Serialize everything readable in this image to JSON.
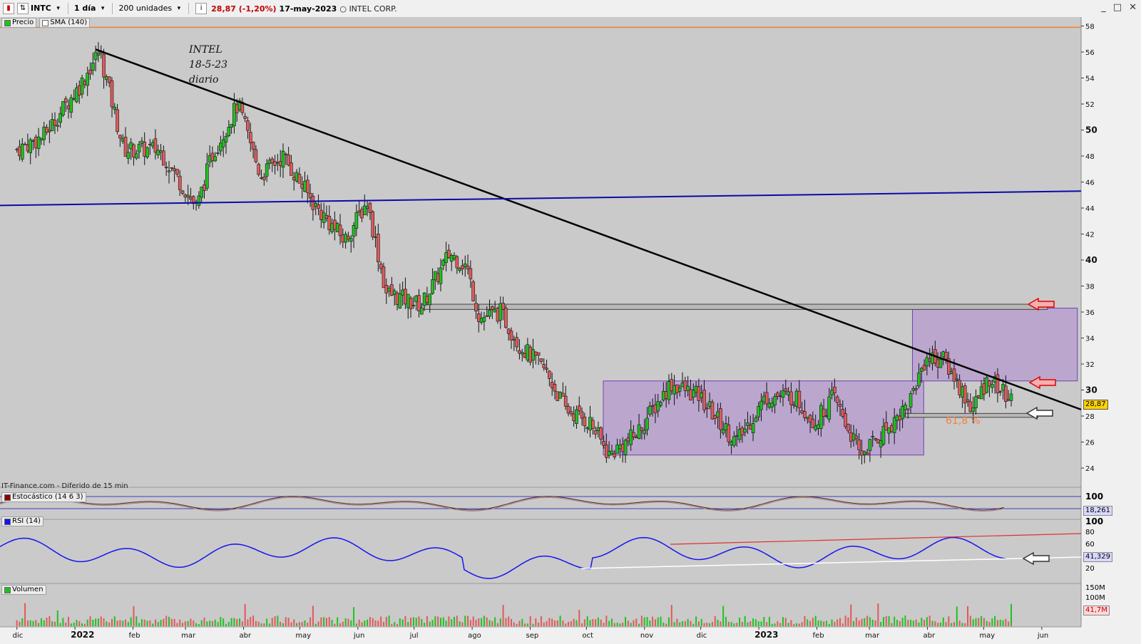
{
  "toolbar": {
    "symbol": "INTC",
    "interval": "1 día",
    "units": "200 unidades",
    "price_change": "28,87 (-1,20%)",
    "date": "17-may-2023",
    "company": "INTEL CORP.",
    "window_controls": [
      "_",
      "□",
      "✕"
    ]
  },
  "legend": {
    "price_label": "Precio",
    "sma_label": "SMA (140)",
    "stoch_label": "Estocástico (14 6 3)",
    "rsi_label": "RSI (14)",
    "volume_label": "Volumen"
  },
  "provider": "IT-Finance.com - Diferido de 15 min",
  "annotation": [
    "INTEL",
    "18-5-23",
    "diario"
  ],
  "fib_label": "61,8 %",
  "last_price_tag": "28,87",
  "stoch_tag": "18,261",
  "rsi_tag": "41,329",
  "vol_tag": "41,7M",
  "colors": {
    "background": "#cacaca",
    "bull": "#22c022",
    "bear": "#e05a5a",
    "trendline": "#000000",
    "support": "#0a0aa8",
    "range_box": "#b090d0",
    "rsi": "#1515f0",
    "resistance_line": "#e03030"
  },
  "chart_data": {
    "type": "candlestick",
    "title": "",
    "y_ticks": [
      "58",
      "56",
      "54",
      "52",
      "50",
      "48",
      "46",
      "44",
      "42",
      "40",
      "38",
      "36",
      "34",
      "32",
      "30",
      "28",
      "26",
      "24"
    ],
    "x_ticks": [
      "dic",
      "2022",
      "feb",
      "mar",
      "abr",
      "may",
      "jun",
      "jul",
      "ago",
      "sep",
      "oct",
      "nov",
      "dic",
      "2023",
      "feb",
      "mar",
      "abr",
      "may",
      "jun"
    ],
    "ylim": [
      23,
      58.5
    ],
    "last_close": 28.87,
    "series": [
      {
        "date": "2021-12-01",
        "close": 48.5
      },
      {
        "date": "2021-12-15",
        "close": 49.5
      },
      {
        "date": "2022-01-04",
        "close": 53.5
      },
      {
        "date": "2022-01-14",
        "close": 56.1
      },
      {
        "date": "2022-01-27",
        "close": 48.5
      },
      {
        "date": "2022-02-15",
        "close": 48.5
      },
      {
        "date": "2022-03-07",
        "close": 44.0
      },
      {
        "date": "2022-03-15",
        "close": 48.0
      },
      {
        "date": "2022-03-29",
        "close": 52.0
      },
      {
        "date": "2022-04-10",
        "close": 46.5
      },
      {
        "date": "2022-04-22",
        "close": 48.0
      },
      {
        "date": "2022-05-10",
        "close": 44.0
      },
      {
        "date": "2022-05-25",
        "close": 41.5
      },
      {
        "date": "2022-06-06",
        "close": 44.5
      },
      {
        "date": "2022-06-16",
        "close": 37.5
      },
      {
        "date": "2022-07-05",
        "close": 36.5
      },
      {
        "date": "2022-07-20",
        "close": 40.5
      },
      {
        "date": "2022-07-29",
        "close": 39.5
      },
      {
        "date": "2022-08-05",
        "close": 35.5
      },
      {
        "date": "2022-08-16",
        "close": 36.0
      },
      {
        "date": "2022-08-26",
        "close": 33.5
      },
      {
        "date": "2022-09-09",
        "close": 31.5
      },
      {
        "date": "2022-09-20",
        "close": 28.5
      },
      {
        "date": "2022-10-03",
        "close": 27.5
      },
      {
        "date": "2022-10-13",
        "close": 25.0
      },
      {
        "date": "2022-10-27",
        "close": 26.5
      },
      {
        "date": "2022-11-15",
        "close": 30.5
      },
      {
        "date": "2022-11-30",
        "close": 29.5
      },
      {
        "date": "2022-12-20",
        "close": 26.0
      },
      {
        "date": "2023-01-05",
        "close": 29.5
      },
      {
        "date": "2023-01-20",
        "close": 29.5
      },
      {
        "date": "2023-01-31",
        "close": 27.5
      },
      {
        "date": "2023-02-10",
        "close": 29.5
      },
      {
        "date": "2023-02-24",
        "close": 25.0
      },
      {
        "date": "2023-03-10",
        "close": 27.0
      },
      {
        "date": "2023-03-22",
        "close": 29.0
      },
      {
        "date": "2023-03-31",
        "close": 32.5
      },
      {
        "date": "2023-04-10",
        "close": 32.3
      },
      {
        "date": "2023-04-25",
        "close": 28.5
      },
      {
        "date": "2023-05-04",
        "close": 31.0
      },
      {
        "date": "2023-05-17",
        "close": 28.87
      }
    ],
    "sma_140_visible": false,
    "stochastic": {
      "name": "Estocástico (14 6 3)",
      "ylim": [
        0,
        100
      ],
      "levels": [
        20,
        80
      ],
      "last": 18.261
    },
    "rsi": {
      "name": "RSI (14)",
      "ylim": [
        0,
        100
      ],
      "ticks": [
        20,
        40,
        60,
        80
      ],
      "last": 41.329
    },
    "volume": {
      "name": "Volumen",
      "ticks": [
        "150M",
        "100M"
      ],
      "last": "41,7M"
    }
  }
}
